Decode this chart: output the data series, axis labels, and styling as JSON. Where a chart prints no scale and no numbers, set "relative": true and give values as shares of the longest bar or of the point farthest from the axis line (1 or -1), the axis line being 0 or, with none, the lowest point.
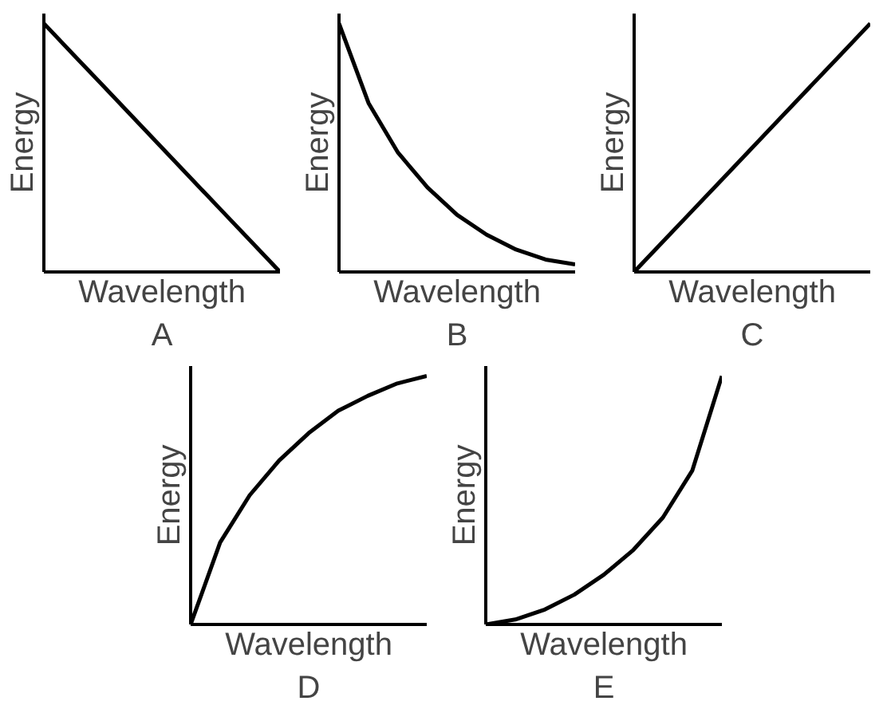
{
  "chart_data": [
    {
      "type": "line",
      "relative": true,
      "categories": [
        null,
        null,
        null,
        null,
        null,
        null,
        null,
        null,
        null
      ],
      "color": "#000000",
      "values": [
        1,
        0.875,
        0.75,
        0.625,
        0.5,
        0.375,
        0.25,
        0.125,
        0
      ],
      "xlabel": "Wavelength",
      "ylabel": "Energy",
      "annotations": [
        "A"
      ]
    },
    {
      "type": "line",
      "relative": true,
      "categories": [
        null,
        null,
        null,
        null,
        null,
        null,
        null,
        null,
        null
      ],
      "color": "#000000",
      "values": [
        1,
        0.68,
        0.48,
        0.34,
        0.23,
        0.15,
        0.09,
        0.05,
        0.03
      ],
      "xlabel": "Wavelength",
      "ylabel": "Energy",
      "annotations": [
        "B"
      ]
    },
    {
      "type": "line",
      "relative": true,
      "categories": [
        null,
        null,
        null,
        null,
        null,
        null,
        null,
        null,
        null
      ],
      "color": "#000000",
      "values": [
        0,
        0.125,
        0.25,
        0.375,
        0.5,
        0.625,
        0.75,
        0.875,
        1
      ],
      "xlabel": "Wavelength",
      "ylabel": "Energy",
      "annotations": [
        "C"
      ]
    },
    {
      "type": "line",
      "relative": true,
      "categories": [
        null,
        null,
        null,
        null,
        null,
        null,
        null,
        null,
        null
      ],
      "color": "#000000",
      "values": [
        0,
        0.33,
        0.52,
        0.66,
        0.77,
        0.86,
        0.92,
        0.97,
        1
      ],
      "xlabel": "Wavelength",
      "ylabel": "Energy",
      "annotations": [
        "D"
      ]
    },
    {
      "type": "line",
      "relative": true,
      "categories": [
        null,
        null,
        null,
        null,
        null,
        null,
        null,
        null,
        null
      ],
      "color": "#000000",
      "values": [
        0,
        0.02,
        0.06,
        0.12,
        0.2,
        0.3,
        0.43,
        0.62,
        1
      ],
      "xlabel": "Wavelength",
      "ylabel": "Energy",
      "annotations": [
        "E"
      ]
    }
  ]
}
